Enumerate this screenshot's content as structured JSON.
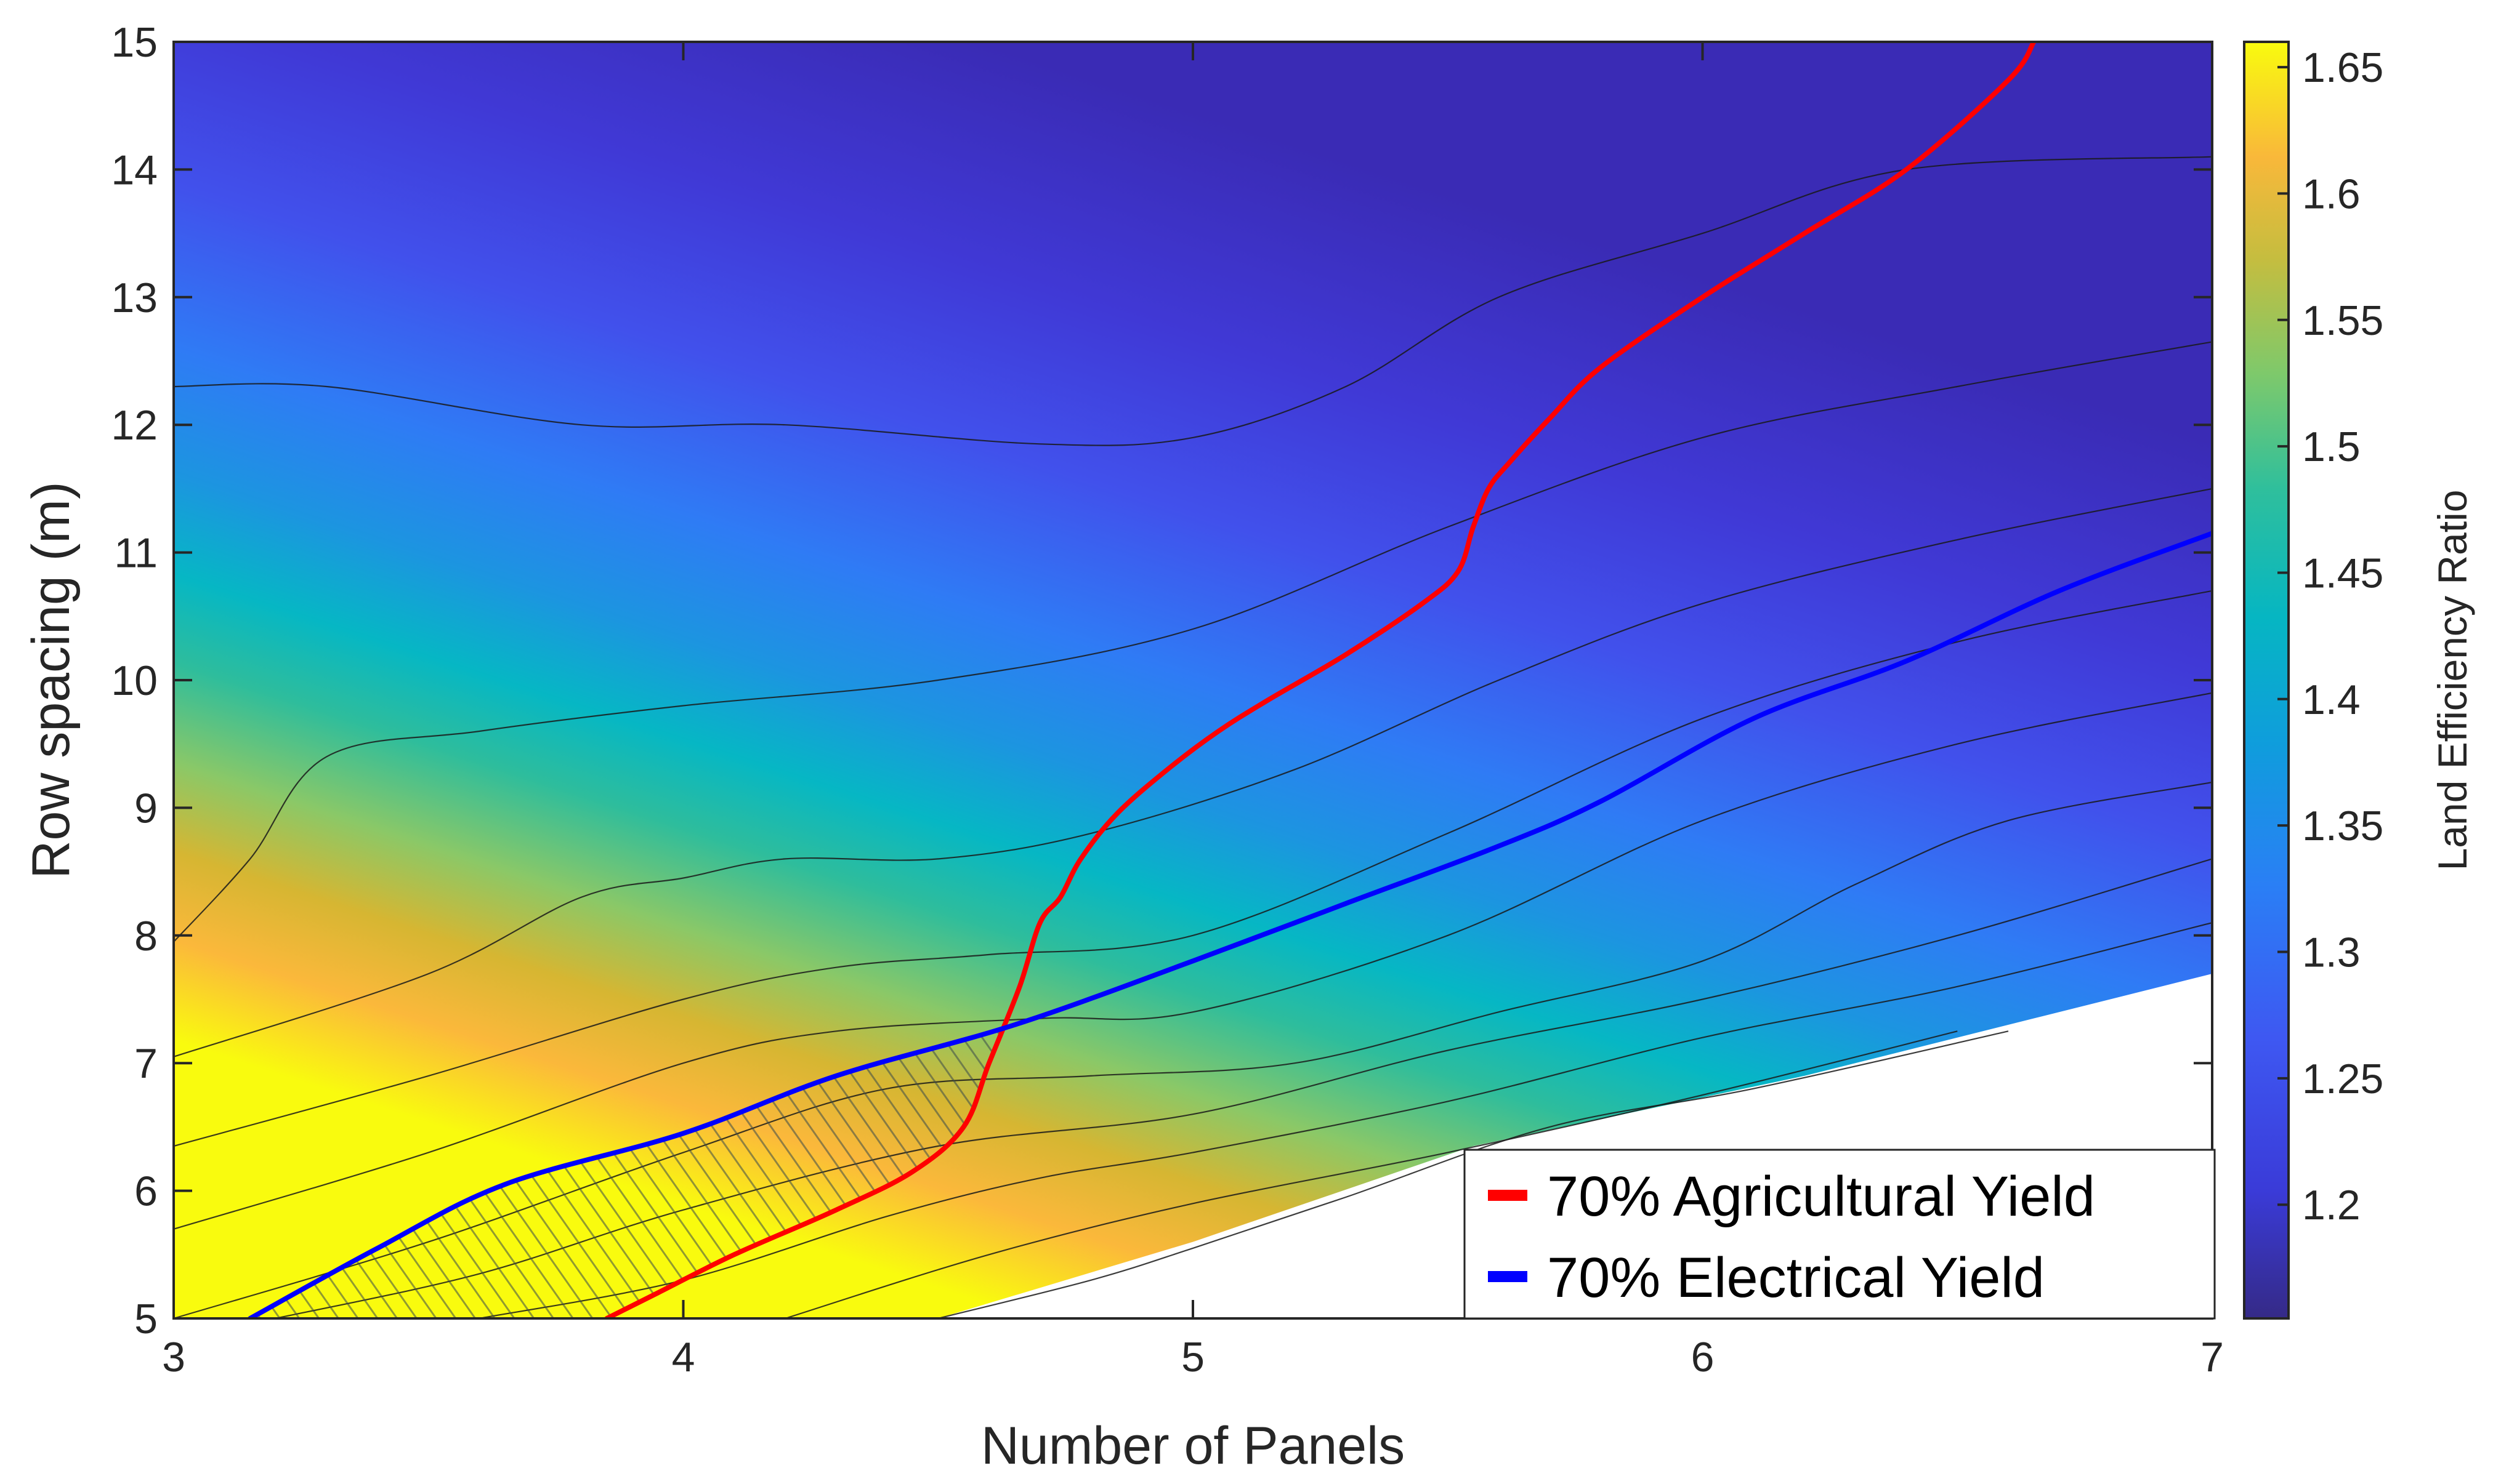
{
  "chart_data": {
    "type": "heatmap",
    "xlabel": "Number of Panels",
    "ylabel": "Row spacing (m)",
    "xlim": [
      3,
      7
    ],
    "ylim": [
      5,
      15
    ],
    "x_ticks": [
      "3",
      "4",
      "5",
      "6",
      "7"
    ],
    "y_ticks": [
      "5",
      "6",
      "7",
      "8",
      "9",
      "10",
      "11",
      "12",
      "13",
      "14",
      "15"
    ],
    "colorbar": {
      "label": "Land Efficiency Ratio",
      "range": [
        1.155,
        1.66
      ],
      "ticks": [
        "1.2",
        "1.25",
        "1.3",
        "1.35",
        "1.4",
        "1.45",
        "1.5",
        "1.55",
        "1.6",
        "1.65"
      ],
      "colormap": "parula"
    },
    "valid_region_lower_bound": {
      "x": [
        3.0,
        3.8,
        4.5,
        5.0,
        5.55,
        6.2,
        7.0
      ],
      "y": [
        5.0,
        5.0,
        5.0,
        5.6,
        6.35,
        6.9,
        7.7
      ]
    },
    "contour_lines_approx": [
      {
        "x": [
          3.0,
          3.3,
          3.8,
          4.2,
          4.7,
          5.0,
          5.3,
          5.6,
          6.0,
          6.4,
          7.0
        ],
        "y": [
          12.3,
          12.3,
          12.0,
          12.0,
          11.85,
          11.9,
          12.3,
          13.0,
          13.5,
          14.0,
          14.1
        ]
      },
      {
        "x": [
          3.0,
          3.15,
          3.3,
          3.6,
          4.0,
          4.5,
          5.0,
          5.5,
          6.0,
          6.5,
          7.0
        ],
        "y": [
          7.95,
          8.6,
          9.4,
          9.6,
          9.8,
          10.0,
          10.4,
          11.2,
          11.9,
          12.3,
          12.65
        ]
      },
      {
        "x": [
          3.0,
          3.5,
          3.8,
          4.0,
          4.2,
          4.5,
          4.8,
          5.2,
          5.6,
          6.0,
          6.5,
          7.0
        ],
        "y": [
          7.05,
          7.7,
          8.3,
          8.45,
          8.6,
          8.6,
          8.8,
          9.3,
          10.0,
          10.6,
          11.1,
          11.5
        ]
      },
      {
        "x": [
          3.0,
          3.5,
          4.0,
          4.3,
          4.6,
          5.0,
          5.5,
          6.0,
          6.5,
          7.0
        ],
        "y": [
          6.35,
          6.9,
          7.5,
          7.75,
          7.85,
          8.0,
          8.8,
          9.7,
          10.3,
          10.7
        ]
      },
      {
        "x": [
          3.0,
          3.5,
          4.0,
          4.3,
          4.7,
          5.0,
          5.5,
          6.0,
          6.5,
          7.0
        ],
        "y": [
          5.7,
          6.3,
          7.0,
          7.25,
          7.35,
          7.4,
          8.0,
          8.9,
          9.5,
          9.9
        ]
      },
      {
        "x": [
          3.0,
          3.5,
          4.0,
          4.4,
          4.8,
          5.2,
          5.6,
          6.0,
          6.3,
          6.6,
          7.0
        ],
        "y": [
          5.0,
          5.6,
          6.3,
          6.8,
          6.9,
          7.0,
          7.4,
          7.8,
          8.4,
          8.9,
          9.2
        ]
      },
      {
        "x": [
          3.2,
          3.6,
          4.0,
          4.5,
          5.0,
          5.5,
          6.0,
          6.5,
          7.0
        ],
        "y": [
          5.0,
          5.35,
          5.85,
          6.35,
          6.6,
          7.1,
          7.5,
          8.0,
          8.6
        ]
      },
      {
        "x": [
          3.6,
          4.0,
          4.4,
          4.7,
          5.0,
          5.5,
          6.0,
          6.5,
          7.0
        ],
        "y": [
          5.0,
          5.3,
          5.8,
          6.1,
          6.3,
          6.7,
          7.2,
          7.6,
          8.1
        ]
      },
      {
        "x": [
          4.2,
          4.6,
          5.0,
          5.5,
          6.0,
          6.5
        ],
        "y": [
          5.0,
          5.5,
          5.9,
          6.3,
          6.75,
          7.25
        ]
      },
      {
        "x": [
          4.5,
          4.8,
          5.0,
          5.3,
          5.7,
          6.1,
          6.6
        ],
        "y": [
          5.0,
          5.3,
          5.55,
          5.95,
          6.5,
          6.8,
          7.25
        ]
      }
    ],
    "series": [
      {
        "name": "70% Agricultural Yield",
        "color": "#ff0000",
        "x": [
          3.85,
          3.95,
          4.1,
          4.3,
          4.45,
          4.55,
          4.6,
          4.66,
          4.7,
          4.74,
          4.78,
          4.85,
          4.95,
          5.05,
          5.15,
          5.3,
          5.45,
          5.52,
          5.55,
          5.58,
          5.62,
          5.7,
          5.8,
          6.0,
          6.2,
          6.4,
          6.6,
          6.65
        ],
        "y": [
          5.0,
          5.2,
          5.5,
          5.85,
          6.15,
          6.5,
          7.0,
          7.6,
          8.1,
          8.3,
          8.6,
          8.95,
          9.3,
          9.6,
          9.85,
          10.2,
          10.6,
          10.85,
          11.2,
          11.5,
          11.7,
          12.05,
          12.45,
          13.0,
          13.5,
          14.0,
          14.7,
          15.0
        ]
      },
      {
        "name": "70% Electrical Yield",
        "color": "#0000ff",
        "x": [
          3.15,
          3.4,
          3.65,
          4.0,
          4.3,
          4.65,
          5.0,
          5.3,
          5.6,
          5.8,
          6.1,
          6.4,
          6.7,
          7.0
        ],
        "y": [
          5.0,
          5.55,
          6.05,
          6.45,
          6.9,
          7.3,
          7.8,
          8.25,
          8.7,
          9.05,
          9.7,
          10.15,
          10.7,
          11.15
        ]
      }
    ],
    "hatched_region": "feasible region where both yields are at least 70%",
    "legend": {
      "placement": "bottom-right",
      "entries": [
        "70% Agricultural Yield",
        "70% Electrical Yield"
      ]
    }
  }
}
